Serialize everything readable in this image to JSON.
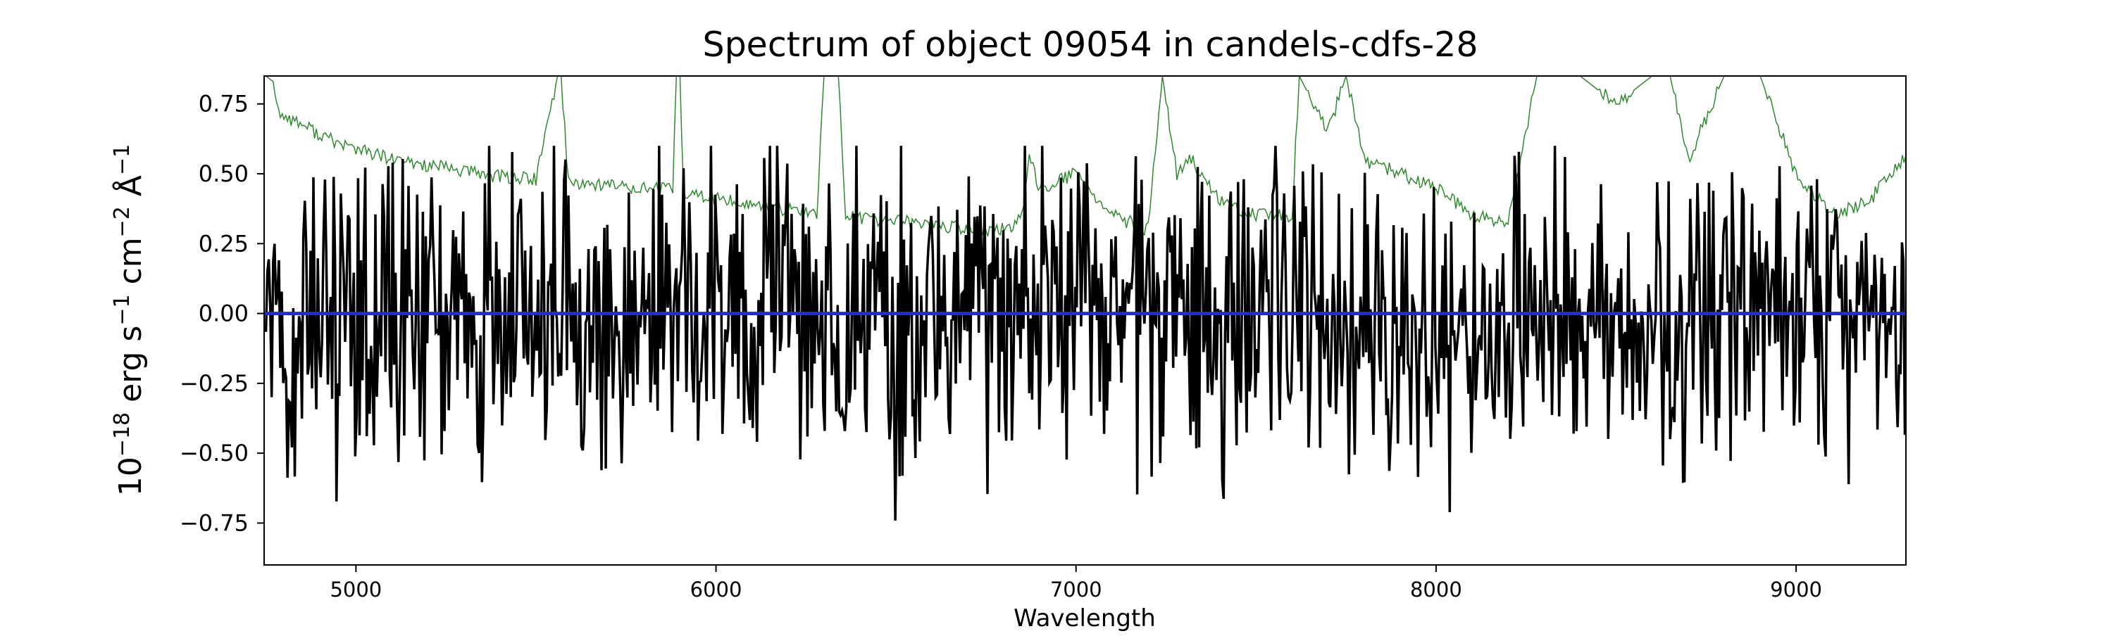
{
  "chart_data": {
    "type": "line",
    "title": "Spectrum of object 09054 in candels-cdfs-28",
    "xlabel": "Wavelength",
    "ylabel_base": "10",
    "ylabel_exp": "−18",
    "ylabel_units": [
      {
        "t": " erg s",
        "sup": "−1"
      },
      {
        "t": " cm",
        "sup": "−2"
      },
      {
        "t": " Å",
        "sup": "−1"
      }
    ],
    "xlim": [
      4745,
      9305
    ],
    "ylim": [
      -0.9,
      0.85
    ],
    "xticks": [
      5000,
      6000,
      7000,
      8000,
      9000
    ],
    "xtick_labels": [
      "5000",
      "6000",
      "7000",
      "8000",
      "9000"
    ],
    "yticks": [
      -0.75,
      -0.5,
      -0.25,
      0.0,
      0.25,
      0.5,
      0.75
    ],
    "ytick_labels": [
      "−0.75",
      "−0.50",
      "−0.25",
      "0.00",
      "0.25",
      "0.50",
      "0.75"
    ],
    "grid": false,
    "legend": "none",
    "series": [
      {
        "role": "error",
        "color": "#2e8b2e",
        "x": [
          4750,
          4770,
          4790,
          4800,
          4830,
          4860,
          4900,
          4950,
          5000,
          5050,
          5100,
          5150,
          5200,
          5300,
          5400,
          5500,
          5560,
          5570,
          5590,
          5600,
          5700,
          5800,
          5880,
          5890,
          5900,
          5910,
          6000,
          6100,
          6200,
          6280,
          6300,
          6320,
          6340,
          6360,
          6400,
          6500,
          6600,
          6700,
          6800,
          6850,
          6870,
          6900,
          7000,
          7100,
          7200,
          7240,
          7280,
          7320,
          7400,
          7500,
          7600,
          7620,
          7700,
          7750,
          7800,
          7900,
          8000,
          8100,
          8200,
          8280,
          8320,
          8400,
          8500,
          8600,
          8650,
          8700,
          8800,
          8850,
          8900,
          9000,
          9100,
          9200,
          9300
        ],
        "values": [
          0.85,
          0.83,
          0.7,
          0.71,
          0.69,
          0.67,
          0.64,
          0.61,
          0.59,
          0.57,
          0.55,
          0.54,
          0.53,
          0.51,
          0.49,
          0.48,
          0.85,
          0.85,
          0.47,
          0.47,
          0.46,
          0.45,
          0.44,
          0.85,
          0.85,
          0.43,
          0.41,
          0.39,
          0.37,
          0.36,
          0.85,
          0.85,
          0.85,
          0.35,
          0.34,
          0.33,
          0.32,
          0.3,
          0.3,
          0.34,
          0.55,
          0.45,
          0.5,
          0.35,
          0.3,
          0.85,
          0.5,
          0.55,
          0.4,
          0.35,
          0.35,
          0.85,
          0.65,
          0.85,
          0.55,
          0.5,
          0.45,
          0.35,
          0.32,
          0.85,
          0.85,
          0.85,
          0.75,
          0.85,
          0.85,
          0.55,
          0.85,
          0.85,
          0.85,
          0.5,
          0.35,
          0.4,
          0.55
        ],
        "noise": 0.05
      },
      {
        "role": "flux",
        "color": "#000000",
        "generator": {
          "seed": 9054,
          "step": 4,
          "sigma_start": 0.3,
          "sigma_end": 0.25,
          "mean": -0.02,
          "ymin": -0.89,
          "ymax": 0.6
        }
      },
      {
        "role": "model",
        "color": "#1f2fcf",
        "x": [
          4745,
          9305
        ],
        "values": [
          0.0,
          0.0
        ]
      }
    ]
  }
}
